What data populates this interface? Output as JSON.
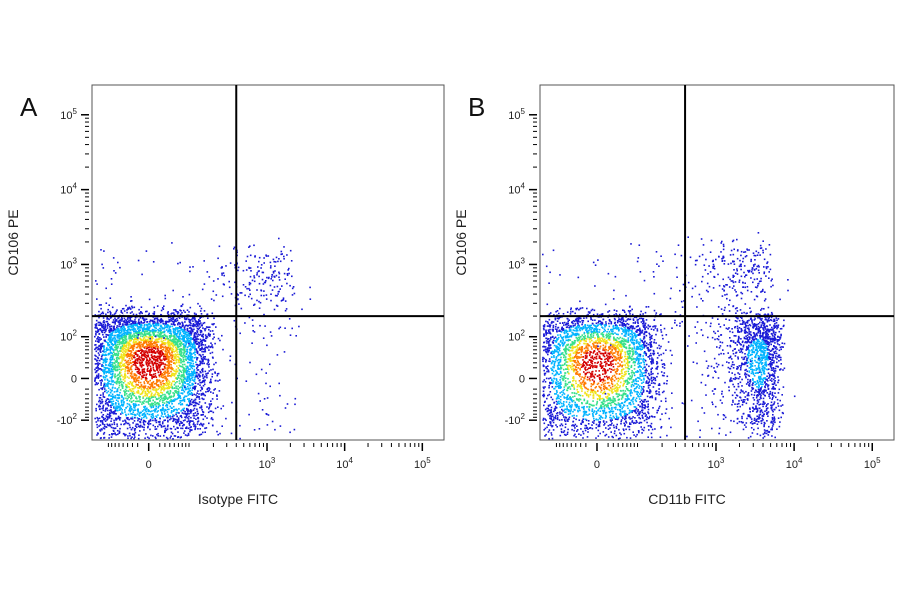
{
  "chart_data": [
    {
      "type": "scatter",
      "panel_label": "A",
      "xlabel": "Isotype FITC",
      "ylabel": "CD106 PE",
      "x_scale": "biexponential",
      "y_scale": "biexponential",
      "x_ticks": [
        {
          "value": 0,
          "base": "0",
          "exp": ""
        },
        {
          "value": 1000,
          "base": "10",
          "exp": "3"
        },
        {
          "value": 10000,
          "base": "10",
          "exp": "4"
        },
        {
          "value": 100000,
          "base": "10",
          "exp": "5"
        }
      ],
      "y_ticks": [
        {
          "value": -100,
          "base": "-10",
          "exp": "2"
        },
        {
          "value": 0,
          "base": "0",
          "exp": ""
        },
        {
          "value": 100,
          "base": "10",
          "exp": "2"
        },
        {
          "value": 1000,
          "base": "10",
          "exp": "3"
        },
        {
          "value": 10000,
          "base": "10",
          "exp": "4"
        },
        {
          "value": 100000,
          "base": "10",
          "exp": "5"
        }
      ],
      "quadrant_gate": {
        "x": 400,
        "y": 200
      },
      "populations": [
        {
          "x_center": 0,
          "y_center": 35,
          "x_spread": 80,
          "y_spread": 90,
          "relative_size": 0.88
        },
        {
          "x_center": 300,
          "y_center": 300,
          "x_spread": 900,
          "y_spread": 600,
          "relative_size": 0.12
        }
      ],
      "density_colors": [
        "#1a1ad6",
        "#00b4ff",
        "#36e08a",
        "#f0e31a",
        "#ff7a00",
        "#d40000"
      ],
      "grid": false
    },
    {
      "type": "scatter",
      "panel_label": "B",
      "xlabel": "CD11b FITC",
      "ylabel": "CD106 PE",
      "x_scale": "biexponential",
      "y_scale": "biexponential",
      "x_ticks": [
        {
          "value": 0,
          "base": "0",
          "exp": ""
        },
        {
          "value": 1000,
          "base": "10",
          "exp": "3"
        },
        {
          "value": 10000,
          "base": "10",
          "exp": "4"
        },
        {
          "value": 100000,
          "base": "10",
          "exp": "5"
        }
      ],
      "y_ticks": [
        {
          "value": -100,
          "base": "-10",
          "exp": "2"
        },
        {
          "value": 0,
          "base": "0",
          "exp": ""
        },
        {
          "value": 100,
          "base": "10",
          "exp": "2"
        },
        {
          "value": 1000,
          "base": "10",
          "exp": "3"
        },
        {
          "value": 10000,
          "base": "10",
          "exp": "4"
        },
        {
          "value": 100000,
          "base": "10",
          "exp": "5"
        }
      ],
      "quadrant_gate": {
        "x": 400,
        "y": 200
      },
      "populations": [
        {
          "x_center": 0,
          "y_center": 30,
          "x_spread": 80,
          "y_spread": 90,
          "relative_size": 0.62
        },
        {
          "x_center": 3500,
          "y_center": 40,
          "x_spread": 1500,
          "y_spread": 80,
          "relative_size": 0.25
        },
        {
          "x_center": 1000,
          "y_center": 400,
          "x_spread": 2000,
          "y_spread": 700,
          "relative_size": 0.13
        }
      ],
      "density_colors": [
        "#1a1ad6",
        "#00b4ff",
        "#36e08a",
        "#f0e31a",
        "#ff7a00",
        "#d40000"
      ],
      "grid": false
    }
  ]
}
